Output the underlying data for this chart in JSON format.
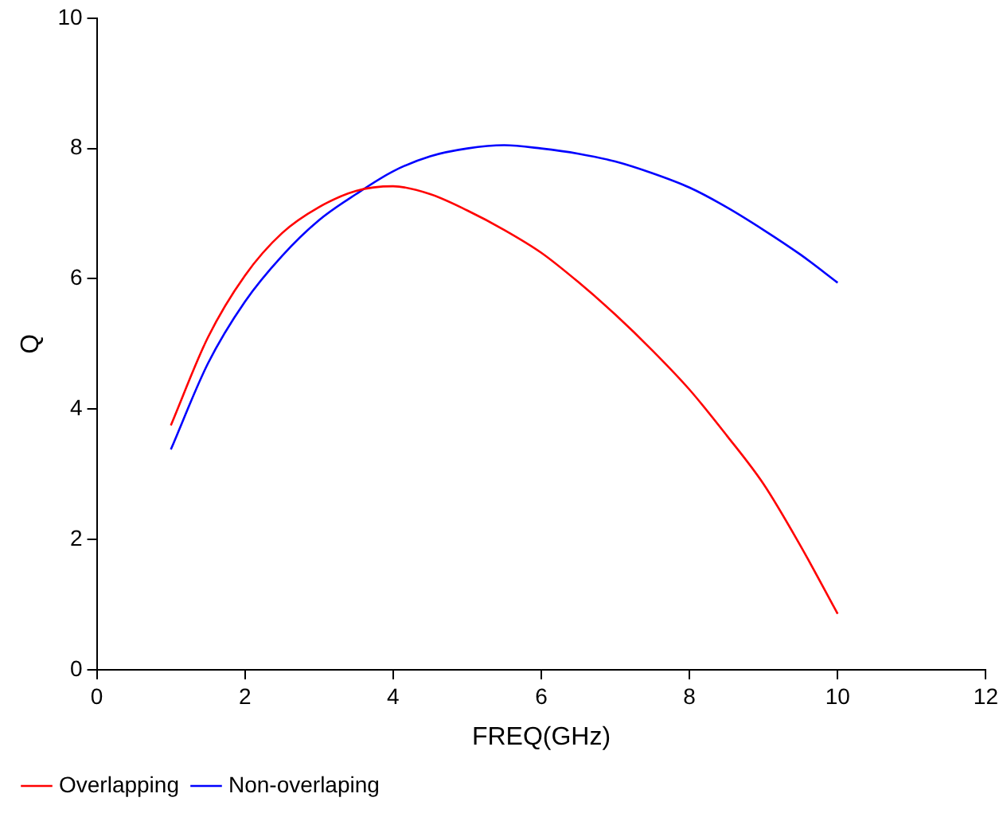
{
  "chart_data": {
    "type": "line",
    "xlabel": "FREQ(GHz)",
    "ylabel": "Q",
    "xlim": [
      0,
      12
    ],
    "xticks": [
      0,
      2,
      4,
      6,
      8,
      10,
      12
    ],
    "ylim": [
      0,
      10
    ],
    "yticks": [
      0,
      2,
      4,
      6,
      8,
      10
    ],
    "grid": false,
    "legend": "bottom left",
    "marker": "none",
    "line_style": "solid",
    "x": [
      1,
      1.5,
      2,
      2.5,
      3,
      3.5,
      4,
      4.5,
      5,
      5.5,
      6,
      6.5,
      7,
      7.5,
      8,
      8.5,
      9,
      9.5,
      10
    ],
    "series": [
      {
        "name": "Overlapping",
        "color": "#ff0000",
        "values": [
          3.75,
          5.1,
          6.05,
          6.7,
          7.1,
          7.35,
          7.42,
          7.3,
          7.05,
          6.75,
          6.4,
          5.95,
          5.45,
          4.9,
          4.3,
          3.6,
          2.85,
          1.9,
          0.86
        ]
      },
      {
        "name": "Non-overlaping",
        "color": "#0000ff",
        "values": [
          3.38,
          4.7,
          5.65,
          6.35,
          6.9,
          7.3,
          7.65,
          7.88,
          8.0,
          8.05,
          8.0,
          7.92,
          7.8,
          7.62,
          7.4,
          7.1,
          6.75,
          6.37,
          5.94
        ]
      }
    ]
  }
}
